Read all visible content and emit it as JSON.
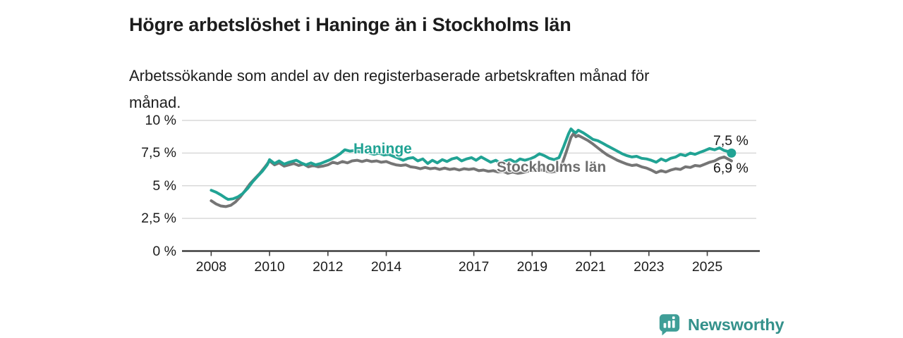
{
  "header": {
    "title": "Högre arbetslöshet i Haninge än i Stockholms län",
    "subtitle_line1": "Arbetssökande som andel av den registerbaserade arbetskraften månad för",
    "subtitle_line2": "månad."
  },
  "chart_data": {
    "type": "line",
    "title": "Högre arbetslöshet i Haninge än i Stockholms län",
    "subtitle": "Arbetssökande som andel av den registerbaserade arbetskraften månad för månad.",
    "xlabel": "",
    "ylabel": "",
    "xlim": [
      2007,
      2026.8
    ],
    "ylim": [
      0,
      10
    ],
    "grid": "horizontal",
    "legend_position": "inline-labels",
    "x_tick_years": [
      2008,
      2010,
      2012,
      2014,
      2017,
      2019,
      2021,
      2023,
      2025
    ],
    "x_tick_labels": [
      "2008",
      "2010",
      "2012",
      "2014",
      "2017",
      "2019",
      "2021",
      "2023",
      "2025"
    ],
    "y_tick_values": [
      0,
      2.5,
      5,
      7.5,
      10
    ],
    "y_tick_labels": [
      "0 %",
      "2,5 %",
      "5 %",
      "7,5 %",
      "10 %"
    ],
    "series": [
      {
        "name": "Haninge",
        "color": "#21a394",
        "end_label": "7,5 %",
        "end_value": 7.5,
        "end_dot": true,
        "points": [
          [
            2008.0,
            4.65
          ],
          [
            2008.17,
            4.5
          ],
          [
            2008.33,
            4.3
          ],
          [
            2008.5,
            4.05
          ],
          [
            2008.58,
            3.95
          ],
          [
            2008.75,
            4.0
          ],
          [
            2008.92,
            4.15
          ],
          [
            2009.08,
            4.4
          ],
          [
            2009.25,
            4.8
          ],
          [
            2009.42,
            5.3
          ],
          [
            2009.58,
            5.7
          ],
          [
            2009.75,
            6.1
          ],
          [
            2009.92,
            6.6
          ],
          [
            2010.0,
            7.0
          ],
          [
            2010.17,
            6.7
          ],
          [
            2010.33,
            6.9
          ],
          [
            2010.5,
            6.65
          ],
          [
            2010.67,
            6.8
          ],
          [
            2010.92,
            6.95
          ],
          [
            2011.08,
            6.75
          ],
          [
            2011.25,
            6.6
          ],
          [
            2011.42,
            6.75
          ],
          [
            2011.58,
            6.6
          ],
          [
            2011.75,
            6.7
          ],
          [
            2011.92,
            6.85
          ],
          [
            2012.08,
            7.0
          ],
          [
            2012.25,
            7.2
          ],
          [
            2012.42,
            7.45
          ],
          [
            2012.58,
            7.75
          ],
          [
            2012.75,
            7.65
          ],
          [
            2012.92,
            7.7
          ],
          [
            2013.08,
            7.6
          ],
          [
            2013.25,
            7.65
          ],
          [
            2013.42,
            7.5
          ],
          [
            2013.58,
            7.4
          ],
          [
            2013.75,
            7.5
          ],
          [
            2013.92,
            7.35
          ],
          [
            2014.08,
            7.4
          ],
          [
            2014.25,
            7.25
          ],
          [
            2014.42,
            7.1
          ],
          [
            2014.58,
            6.95
          ],
          [
            2014.75,
            7.1
          ],
          [
            2014.92,
            7.15
          ],
          [
            2015.08,
            6.9
          ],
          [
            2015.25,
            7.05
          ],
          [
            2015.42,
            6.7
          ],
          [
            2015.58,
            6.95
          ],
          [
            2015.75,
            6.75
          ],
          [
            2015.92,
            7.0
          ],
          [
            2016.08,
            6.85
          ],
          [
            2016.25,
            7.05
          ],
          [
            2016.42,
            7.15
          ],
          [
            2016.58,
            6.9
          ],
          [
            2016.75,
            7.05
          ],
          [
            2016.92,
            7.15
          ],
          [
            2017.08,
            6.95
          ],
          [
            2017.25,
            7.2
          ],
          [
            2017.42,
            7.0
          ],
          [
            2017.58,
            6.8
          ],
          [
            2017.75,
            6.95
          ],
          [
            2017.92,
            6.7
          ],
          [
            2018.08,
            6.9
          ],
          [
            2018.25,
            7.0
          ],
          [
            2018.42,
            6.8
          ],
          [
            2018.58,
            7.05
          ],
          [
            2018.75,
            6.95
          ],
          [
            2018.92,
            7.05
          ],
          [
            2019.08,
            7.2
          ],
          [
            2019.25,
            7.45
          ],
          [
            2019.42,
            7.3
          ],
          [
            2019.58,
            7.1
          ],
          [
            2019.75,
            7.0
          ],
          [
            2019.92,
            7.15
          ],
          [
            2020.08,
            8.0
          ],
          [
            2020.25,
            9.0
          ],
          [
            2020.33,
            9.35
          ],
          [
            2020.42,
            9.15
          ],
          [
            2020.5,
            9.05
          ],
          [
            2020.58,
            9.25
          ],
          [
            2020.75,
            9.05
          ],
          [
            2020.92,
            8.8
          ],
          [
            2021.08,
            8.55
          ],
          [
            2021.25,
            8.45
          ],
          [
            2021.42,
            8.25
          ],
          [
            2021.58,
            8.05
          ],
          [
            2021.75,
            7.85
          ],
          [
            2021.92,
            7.65
          ],
          [
            2022.08,
            7.45
          ],
          [
            2022.25,
            7.3
          ],
          [
            2022.42,
            7.2
          ],
          [
            2022.58,
            7.25
          ],
          [
            2022.75,
            7.1
          ],
          [
            2022.92,
            7.05
          ],
          [
            2023.08,
            6.95
          ],
          [
            2023.25,
            6.8
          ],
          [
            2023.42,
            7.05
          ],
          [
            2023.58,
            6.9
          ],
          [
            2023.75,
            7.1
          ],
          [
            2023.92,
            7.2
          ],
          [
            2024.08,
            7.4
          ],
          [
            2024.25,
            7.3
          ],
          [
            2024.42,
            7.5
          ],
          [
            2024.58,
            7.4
          ],
          [
            2024.75,
            7.55
          ],
          [
            2024.92,
            7.7
          ],
          [
            2025.08,
            7.85
          ],
          [
            2025.25,
            7.75
          ],
          [
            2025.42,
            7.9
          ],
          [
            2025.58,
            7.7
          ],
          [
            2025.75,
            7.6
          ],
          [
            2025.83,
            7.5
          ]
        ]
      },
      {
        "name": "Stockholms län",
        "color": "#757575",
        "end_label": "6,9 %",
        "end_value": 6.9,
        "end_dot": false,
        "points": [
          [
            2008.0,
            3.85
          ],
          [
            2008.17,
            3.6
          ],
          [
            2008.33,
            3.45
          ],
          [
            2008.5,
            3.4
          ],
          [
            2008.67,
            3.5
          ],
          [
            2008.83,
            3.75
          ],
          [
            2009.0,
            4.15
          ],
          [
            2009.17,
            4.65
          ],
          [
            2009.33,
            5.15
          ],
          [
            2009.5,
            5.55
          ],
          [
            2009.67,
            5.95
          ],
          [
            2009.83,
            6.4
          ],
          [
            2010.0,
            6.9
          ],
          [
            2010.17,
            6.6
          ],
          [
            2010.33,
            6.75
          ],
          [
            2010.5,
            6.5
          ],
          [
            2010.67,
            6.6
          ],
          [
            2010.83,
            6.7
          ],
          [
            2011.0,
            6.55
          ],
          [
            2011.17,
            6.65
          ],
          [
            2011.33,
            6.45
          ],
          [
            2011.5,
            6.55
          ],
          [
            2011.67,
            6.45
          ],
          [
            2011.83,
            6.5
          ],
          [
            2012.0,
            6.6
          ],
          [
            2012.17,
            6.8
          ],
          [
            2012.33,
            6.7
          ],
          [
            2012.5,
            6.85
          ],
          [
            2012.67,
            6.75
          ],
          [
            2012.83,
            6.9
          ],
          [
            2013.0,
            6.95
          ],
          [
            2013.17,
            6.85
          ],
          [
            2013.33,
            6.95
          ],
          [
            2013.5,
            6.85
          ],
          [
            2013.67,
            6.9
          ],
          [
            2013.83,
            6.8
          ],
          [
            2014.0,
            6.85
          ],
          [
            2014.17,
            6.7
          ],
          [
            2014.33,
            6.6
          ],
          [
            2014.5,
            6.55
          ],
          [
            2014.67,
            6.6
          ],
          [
            2014.83,
            6.45
          ],
          [
            2015.0,
            6.4
          ],
          [
            2015.17,
            6.3
          ],
          [
            2015.33,
            6.4
          ],
          [
            2015.5,
            6.3
          ],
          [
            2015.67,
            6.35
          ],
          [
            2015.83,
            6.25
          ],
          [
            2016.0,
            6.35
          ],
          [
            2016.17,
            6.25
          ],
          [
            2016.33,
            6.3
          ],
          [
            2016.5,
            6.2
          ],
          [
            2016.67,
            6.3
          ],
          [
            2016.83,
            6.25
          ],
          [
            2017.0,
            6.3
          ],
          [
            2017.17,
            6.15
          ],
          [
            2017.33,
            6.2
          ],
          [
            2017.5,
            6.1
          ],
          [
            2017.67,
            6.15
          ],
          [
            2017.83,
            6.05
          ],
          [
            2018.0,
            6.1
          ],
          [
            2018.17,
            5.95
          ],
          [
            2018.33,
            6.05
          ],
          [
            2018.5,
            5.95
          ],
          [
            2018.67,
            6.0
          ],
          [
            2018.83,
            6.1
          ],
          [
            2019.0,
            6.15
          ],
          [
            2019.17,
            6.25
          ],
          [
            2019.33,
            6.2
          ],
          [
            2019.5,
            6.1
          ],
          [
            2019.67,
            6.05
          ],
          [
            2019.83,
            6.1
          ],
          [
            2020.0,
            6.5
          ],
          [
            2020.17,
            7.6
          ],
          [
            2020.33,
            8.7
          ],
          [
            2020.42,
            9.0
          ],
          [
            2020.5,
            8.75
          ],
          [
            2020.58,
            8.85
          ],
          [
            2020.75,
            8.65
          ],
          [
            2020.92,
            8.45
          ],
          [
            2021.08,
            8.2
          ],
          [
            2021.25,
            7.9
          ],
          [
            2021.42,
            7.6
          ],
          [
            2021.58,
            7.35
          ],
          [
            2021.75,
            7.15
          ],
          [
            2021.92,
            6.95
          ],
          [
            2022.08,
            6.8
          ],
          [
            2022.25,
            6.65
          ],
          [
            2022.42,
            6.55
          ],
          [
            2022.58,
            6.6
          ],
          [
            2022.75,
            6.45
          ],
          [
            2022.92,
            6.35
          ],
          [
            2023.08,
            6.2
          ],
          [
            2023.25,
            6.0
          ],
          [
            2023.42,
            6.15
          ],
          [
            2023.58,
            6.05
          ],
          [
            2023.75,
            6.2
          ],
          [
            2023.92,
            6.3
          ],
          [
            2024.08,
            6.25
          ],
          [
            2024.25,
            6.45
          ],
          [
            2024.42,
            6.4
          ],
          [
            2024.58,
            6.55
          ],
          [
            2024.75,
            6.5
          ],
          [
            2024.92,
            6.65
          ],
          [
            2025.08,
            6.8
          ],
          [
            2025.25,
            6.9
          ],
          [
            2025.42,
            7.1
          ],
          [
            2025.58,
            7.2
          ],
          [
            2025.75,
            7.0
          ],
          [
            2025.83,
            6.9
          ]
        ]
      }
    ]
  },
  "footer": {
    "brand": "Newsworthy"
  },
  "colors": {
    "haninge_teal": "#21a394",
    "stockholm_gray": "#757575",
    "grid": "#d9d9d9",
    "axis": "#3f3f3f",
    "title_text": "#1c1c1c",
    "brand_teal": "#34918b"
  }
}
